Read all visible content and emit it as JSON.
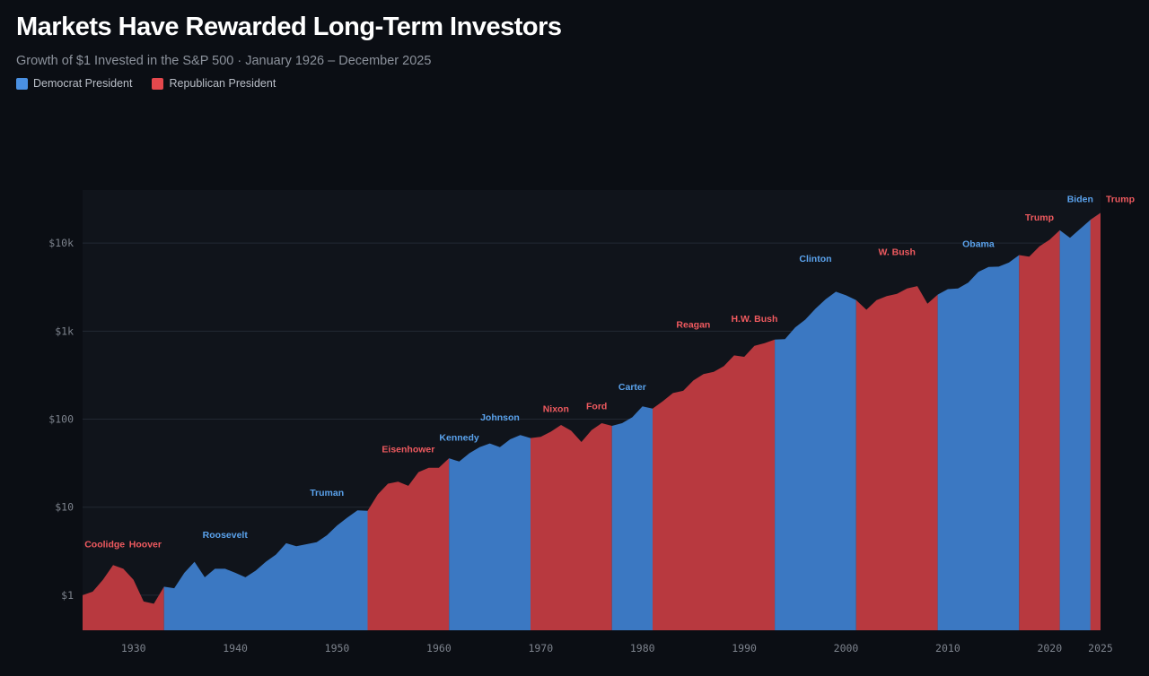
{
  "header": {
    "title": "Markets Have Rewarded Long-Term Investors",
    "subtitle": "Growth of $1 Invested in the S&P 500 · January 1926 – December 2025"
  },
  "legend": [
    {
      "label": "Democrat President",
      "color": "#4a90e2"
    },
    {
      "label": "Republican President",
      "color": "#e5484d"
    }
  ],
  "colors": {
    "D_fill": "#3b78c2",
    "R_fill": "#b8393f",
    "D_text": "#5aa2ec",
    "R_text": "#ef5a5f"
  },
  "chart_data": {
    "type": "area",
    "title": "Markets Have Rewarded Long-Term Investors",
    "xlabel": "",
    "ylabel": "",
    "xlim": [
      1925,
      2025
    ],
    "ylim": [
      0.4,
      40000
    ],
    "yscale": "log",
    "grid": true,
    "y_ticks": [
      {
        "value": 1,
        "label": "$1"
      },
      {
        "value": 10,
        "label": "$10"
      },
      {
        "value": 100,
        "label": "$100"
      },
      {
        "value": 1000,
        "label": "$1k"
      },
      {
        "value": 10000,
        "label": "$10k"
      }
    ],
    "x_ticks": [
      1930,
      1940,
      1950,
      1960,
      1970,
      1980,
      1990,
      2000,
      2010,
      2020,
      2025
    ],
    "series": [
      {
        "name": "Growth of $1",
        "x": [
          1925,
          1926,
          1927,
          1928,
          1929,
          1930,
          1931,
          1932,
          1933,
          1934,
          1935,
          1936,
          1937,
          1938,
          1939,
          1940,
          1941,
          1942,
          1943,
          1944,
          1945,
          1946,
          1947,
          1948,
          1949,
          1950,
          1951,
          1952,
          1953,
          1954,
          1955,
          1956,
          1957,
          1958,
          1959,
          1960,
          1961,
          1962,
          1963,
          1964,
          1965,
          1966,
          1967,
          1968,
          1969,
          1970,
          1971,
          1972,
          1973,
          1974,
          1975,
          1976,
          1977,
          1978,
          1979,
          1980,
          1981,
          1982,
          1983,
          1984,
          1985,
          1986,
          1987,
          1988,
          1989,
          1990,
          1991,
          1992,
          1993,
          1994,
          1995,
          1996,
          1997,
          1998,
          1999,
          2000,
          2001,
          2002,
          2003,
          2004,
          2005,
          2006,
          2007,
          2008,
          2009,
          2010,
          2011,
          2012,
          2013,
          2014,
          2015,
          2016,
          2017,
          2018,
          2019,
          2020,
          2021,
          2022,
          2023,
          2024,
          2025
        ],
        "values": [
          1.0,
          1.1,
          1.5,
          2.2,
          2.0,
          1.5,
          0.85,
          0.8,
          1.25,
          1.2,
          1.8,
          2.4,
          1.6,
          2.0,
          2.0,
          1.8,
          1.6,
          1.9,
          2.4,
          2.9,
          3.9,
          3.6,
          3.8,
          4.0,
          4.8,
          6.2,
          7.6,
          9.2,
          9.1,
          14.0,
          18.5,
          19.5,
          17.5,
          25.0,
          28.0,
          28.0,
          36.0,
          33.0,
          41.0,
          48.0,
          53.0,
          48.0,
          59.0,
          66.0,
          61.0,
          63.0,
          72.0,
          86.0,
          74.0,
          55.0,
          75.0,
          90.0,
          84.0,
          90.0,
          105.0,
          140.0,
          132.0,
          160.0,
          198.0,
          210.0,
          275.0,
          325.0,
          345.0,
          400.0,
          530.0,
          510.0,
          680.0,
          730.0,
          800.0,
          810.0,
          1100.0,
          1350.0,
          1800.0,
          2300.0,
          2800.0,
          2550.0,
          2250.0,
          1750.0,
          2250.0,
          2500.0,
          2650.0,
          3050.0,
          3250.0,
          2050.0,
          2600.0,
          3000.0,
          3050.0,
          3550.0,
          4700.0,
          5350.0,
          5400.0,
          6000.0,
          7300.0,
          7000.0,
          9200.0,
          10900.0,
          14000.0,
          11500.0,
          14500.0,
          18300.0,
          22000.0
        ]
      }
    ],
    "terms": [
      {
        "name": "Coolidge",
        "party": "R",
        "start": 1925,
        "end": 1929,
        "label_value": 3.5
      },
      {
        "name": "Hoover",
        "party": "R",
        "start": 1929,
        "end": 1933,
        "label_value": 3.5
      },
      {
        "name": "Roosevelt",
        "party": "D",
        "start": 1933,
        "end": 1945,
        "label_value": 4.5
      },
      {
        "name": "Truman",
        "party": "D",
        "start": 1945,
        "end": 1953,
        "label_value": 13.5
      },
      {
        "name": "Eisenhower",
        "party": "R",
        "start": 1953,
        "end": 1961,
        "label_value": 42
      },
      {
        "name": "Kennedy",
        "party": "D",
        "start": 1961,
        "end": 1963,
        "label_value": 57
      },
      {
        "name": "Johnson",
        "party": "D",
        "start": 1963,
        "end": 1969,
        "label_value": 97
      },
      {
        "name": "Nixon",
        "party": "R",
        "start": 1969,
        "end": 1974,
        "label_value": 120
      },
      {
        "name": "Ford",
        "party": "R",
        "start": 1974,
        "end": 1977,
        "label_value": 130
      },
      {
        "name": "Carter",
        "party": "D",
        "start": 1977,
        "end": 1981,
        "label_value": 215
      },
      {
        "name": "Reagan",
        "party": "R",
        "start": 1981,
        "end": 1989,
        "label_value": 1100
      },
      {
        "name": "H.W. Bush",
        "party": "R",
        "start": 1989,
        "end": 1993,
        "label_value": 1270
      },
      {
        "name": "Clinton",
        "party": "D",
        "start": 1993,
        "end": 2001,
        "label_value": 6100
      },
      {
        "name": "W. Bush",
        "party": "R",
        "start": 2001,
        "end": 2009,
        "label_value": 7300
      },
      {
        "name": "Obama",
        "party": "D",
        "start": 2009,
        "end": 2017,
        "label_value": 9000
      },
      {
        "name": "Trump",
        "party": "R",
        "start": 2017,
        "end": 2021,
        "label_value": 18000
      },
      {
        "name": "Biden",
        "party": "D",
        "start": 2021,
        "end": 2025,
        "label_value": 29000
      },
      {
        "name": "Trump",
        "party": "R",
        "start": 2025,
        "end": 2025,
        "label_value": 29000
      }
    ]
  }
}
